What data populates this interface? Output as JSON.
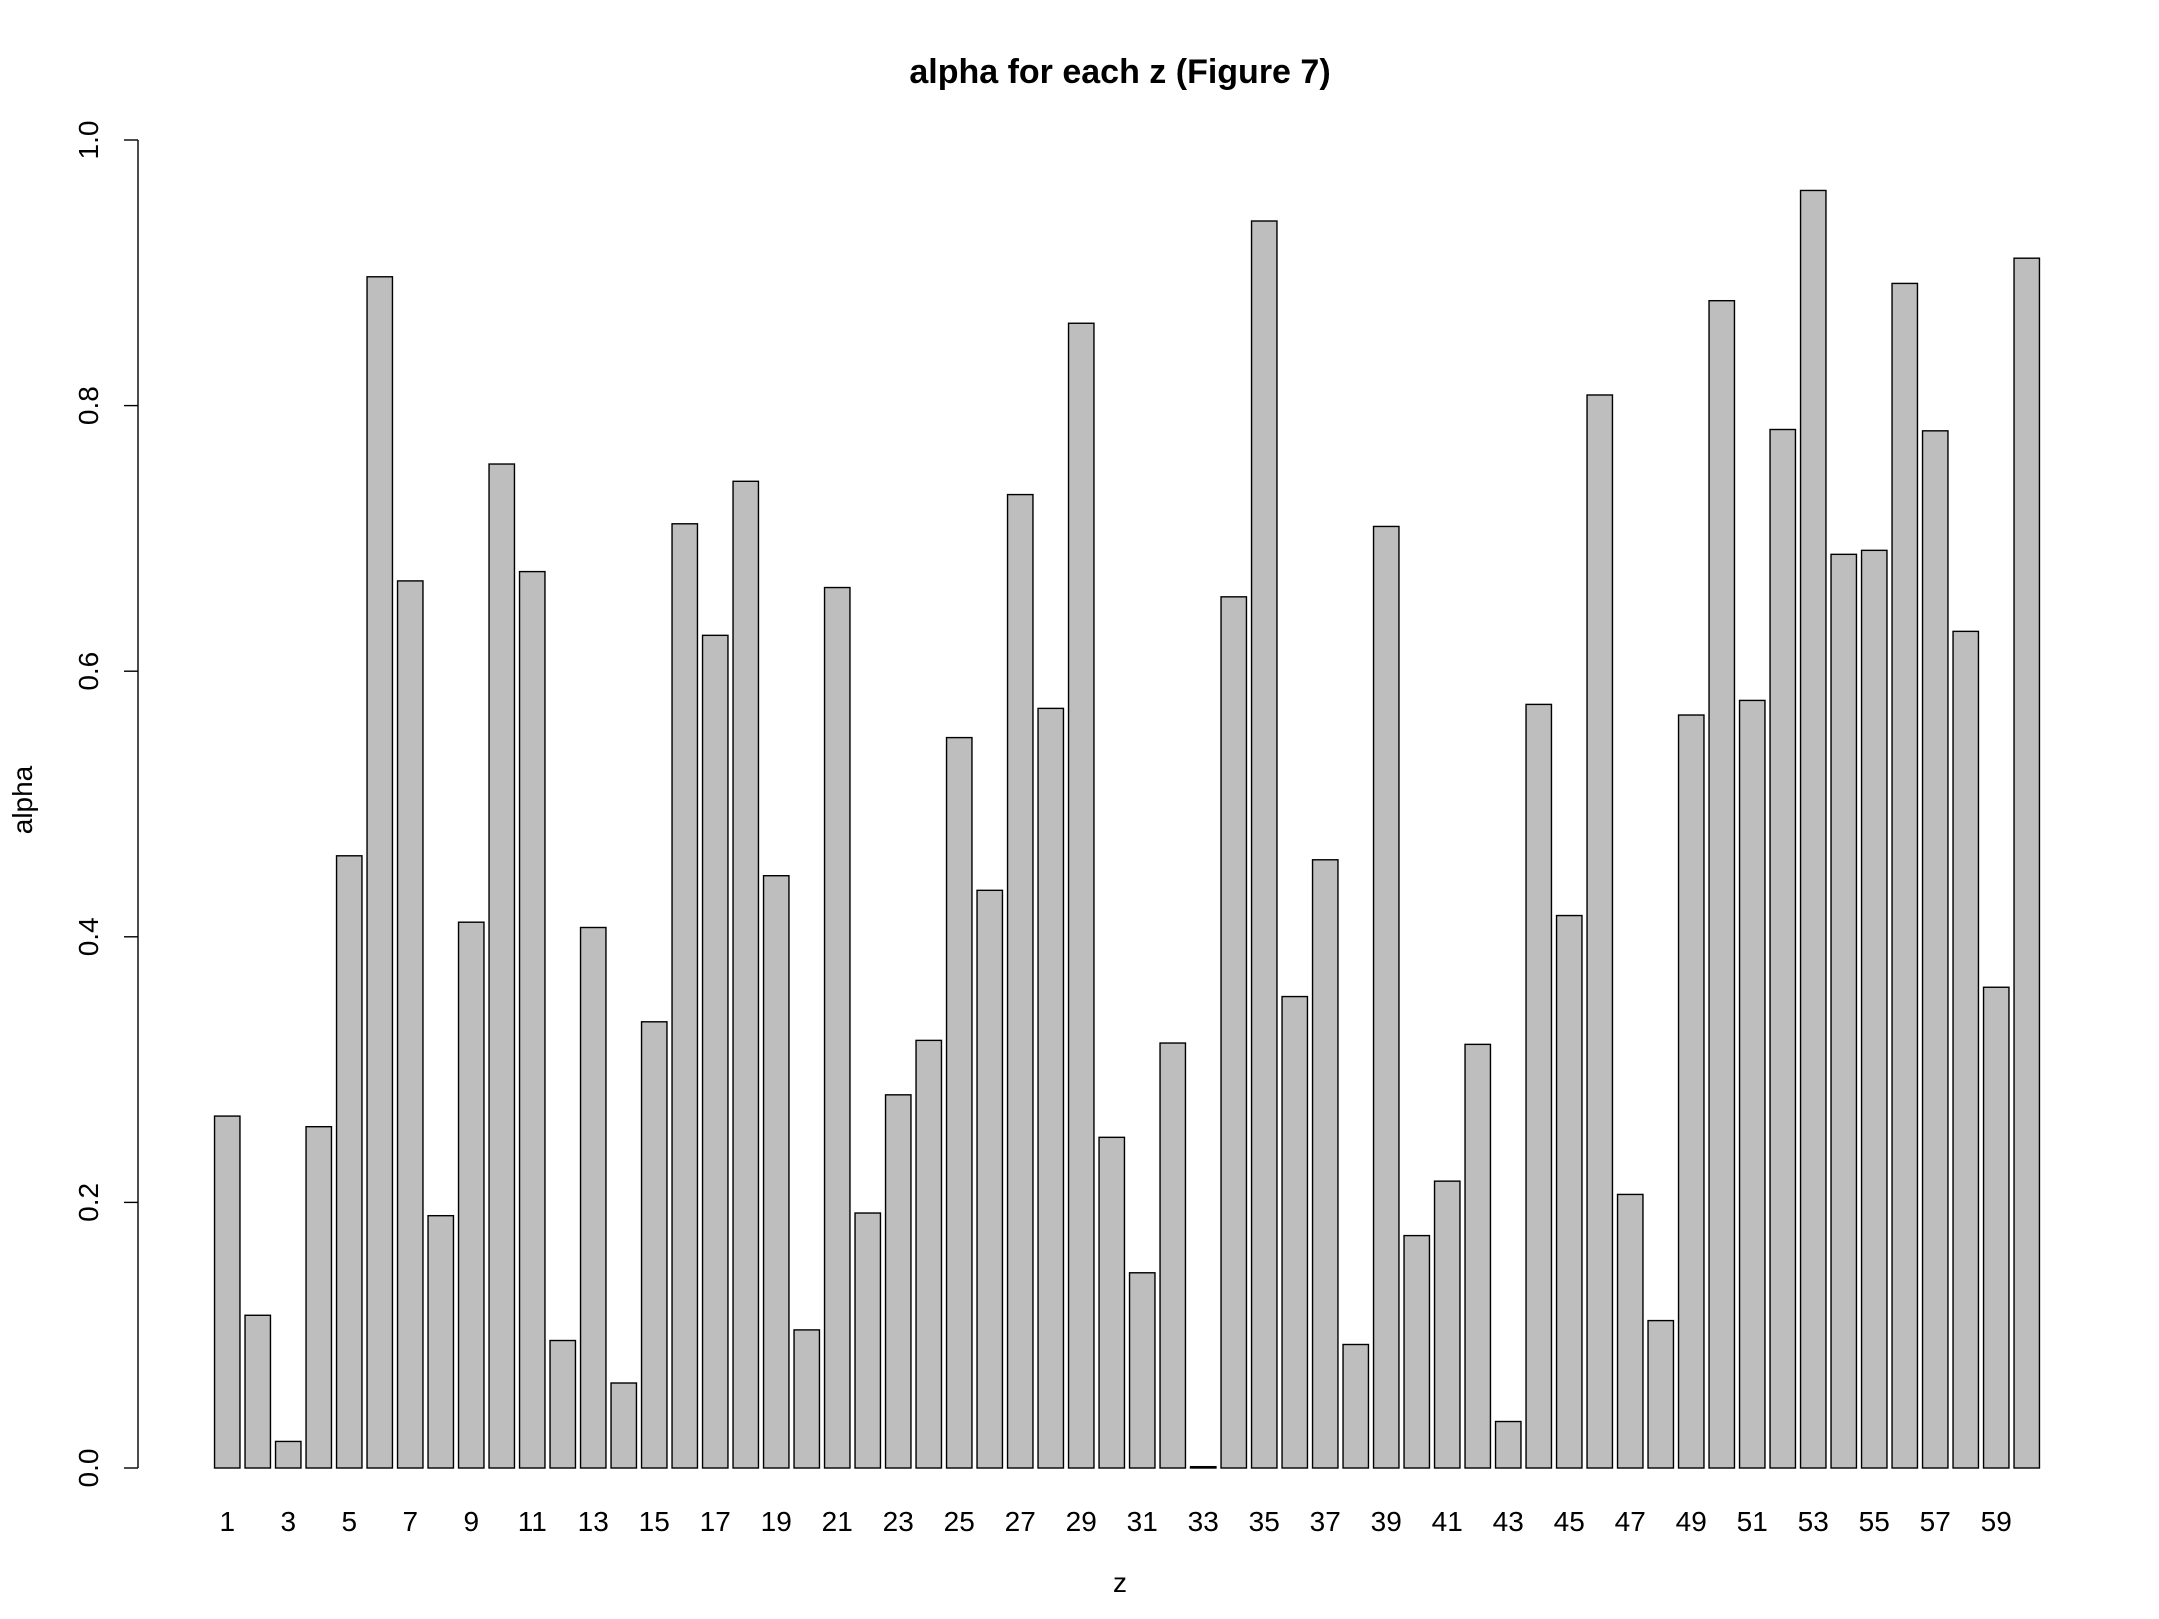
{
  "chart_data": {
    "type": "bar",
    "title": "alpha for each z  (Figure 7)",
    "xlabel": "z",
    "ylabel": "alpha",
    "ylim": [
      0,
      1.0
    ],
    "yticks": [
      "0.0",
      "0.2",
      "0.4",
      "0.6",
      "0.8",
      "1.0"
    ],
    "categories": [
      "1",
      "2",
      "3",
      "4",
      "5",
      "6",
      "7",
      "8",
      "9",
      "10",
      "11",
      "12",
      "13",
      "14",
      "15",
      "16",
      "17",
      "18",
      "19",
      "20",
      "21",
      "22",
      "23",
      "24",
      "25",
      "26",
      "27",
      "28",
      "29",
      "30",
      "31",
      "32",
      "33",
      "34",
      "35",
      "36",
      "37",
      "38",
      "39",
      "40",
      "41",
      "42",
      "43",
      "44",
      "45",
      "46",
      "47",
      "48",
      "49",
      "50",
      "51",
      "52",
      "53",
      "54",
      "55",
      "56",
      "57",
      "58",
      "59",
      "60"
    ],
    "visible_x_labels": [
      "1",
      "3",
      "5",
      "7",
      "9",
      "11",
      "13",
      "15",
      "17",
      "19",
      "21",
      "23",
      "25",
      "27",
      "29",
      "31",
      "33",
      "35",
      "37",
      "39",
      "41",
      "43",
      "45",
      "47",
      "49",
      "51",
      "53",
      "55",
      "57",
      "59"
    ],
    "values": [
      0.265,
      0.115,
      0.02,
      0.257,
      0.461,
      0.897,
      0.668,
      0.19,
      0.411,
      0.756,
      0.675,
      0.096,
      0.407,
      0.064,
      0.336,
      0.711,
      0.627,
      0.743,
      0.446,
      0.104,
      0.663,
      0.192,
      0.281,
      0.322,
      0.55,
      0.435,
      0.733,
      0.572,
      0.862,
      0.249,
      0.147,
      0.32,
      0.001,
      0.656,
      0.939,
      0.355,
      0.458,
      0.093,
      0.709,
      0.175,
      0.216,
      0.319,
      0.035,
      0.575,
      0.416,
      0.808,
      0.206,
      0.111,
      0.567,
      0.879,
      0.578,
      0.782,
      0.962,
      0.688,
      0.691,
      0.892,
      0.781,
      0.63,
      0.362,
      0.911
    ],
    "bar_color": "#bebebe",
    "grid": false,
    "legend": "none"
  }
}
